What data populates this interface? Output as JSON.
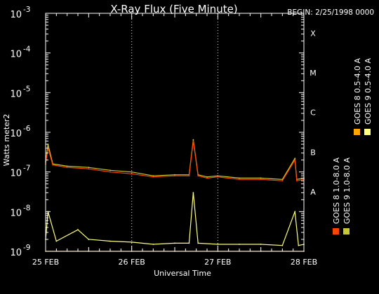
{
  "chart_data": {
    "type": "line",
    "title": "X-Ray Flux (Five Minute)",
    "begin_label": "BEGIN: 2/25/1998 0000",
    "xlabel": "Universal Time",
    "ylabel": "Watts meter2",
    "y_scale": "log",
    "ylim": [
      1e-09,
      0.001
    ],
    "xlim": [
      "1998-02-25",
      "1998-02-28"
    ],
    "grid": true,
    "y_tick_labels": [
      {
        "base": "10",
        "exp": "-9",
        "value": 1e-09
      },
      {
        "base": "10",
        "exp": "-8",
        "value": 1e-08
      },
      {
        "base": "10",
        "exp": "-7",
        "value": 1e-07
      },
      {
        "base": "10",
        "exp": "-6",
        "value": 1e-06
      },
      {
        "base": "10",
        "exp": "-5",
        "value": 1e-05
      },
      {
        "base": "10",
        "exp": "-4",
        "value": 0.0001
      },
      {
        "base": "10",
        "exp": "-3",
        "value": 0.001
      }
    ],
    "x_tick_labels": [
      {
        "label": "25 FEB",
        "value": "1998-02-25"
      },
      {
        "label": "26 FEB",
        "value": "1998-02-26"
      },
      {
        "label": "27 FEB",
        "value": "1998-02-27"
      },
      {
        "label": "28 FEB",
        "value": "1998-02-28"
      }
    ],
    "flare_classes": [
      {
        "label": "A",
        "value": 1e-08
      },
      {
        "label": "B",
        "value": 1e-07
      },
      {
        "label": "C",
        "value": 1e-06
      },
      {
        "label": "M",
        "value": 1e-05
      },
      {
        "label": "X",
        "value": 0.0001
      }
    ],
    "series": [
      {
        "name": "GOES 8 1.0-8.0 A",
        "color": "#ff4400",
        "x": [
          "1998-02-25 00:00",
          "1998-02-25 00:40",
          "1998-02-25 02:00",
          "1998-02-25 06:00",
          "1998-02-25 12:00",
          "1998-02-25 18:00",
          "1998-02-26 00:00",
          "1998-02-26 06:00",
          "1998-02-26 12:00",
          "1998-02-26 16:00",
          "1998-02-26 17:10",
          "1998-02-26 18:30",
          "1998-02-26 21:00",
          "1998-02-27 00:00",
          "1998-02-27 06:00",
          "1998-02-27 12:00",
          "1998-02-27 18:00",
          "1998-02-27 21:30",
          "1998-02-27 22:00",
          "1998-02-28 00:00"
        ],
        "y": [
          1.6e-07,
          4e-07,
          1.5e-07,
          1.3e-07,
          1.2e-07,
          1e-07,
          9e-08,
          7.5e-08,
          8e-08,
          8e-08,
          6e-07,
          8e-08,
          7e-08,
          7.5e-08,
          6.5e-08,
          6.5e-08,
          6e-08,
          2e-07,
          6e-08,
          6.5e-08
        ]
      },
      {
        "name": "GOES 8 0.5-4.0 A",
        "color": "#ffa500",
        "x": [
          "1998-02-25 00:00",
          "1998-02-25 12:00",
          "1998-02-26 00:00",
          "1998-02-26 12:00",
          "1998-02-27 00:00",
          "1998-02-27 12:00",
          "1998-02-28 00:00"
        ],
        "y": [
          1e-09,
          1e-09,
          1e-09,
          1e-09,
          1e-09,
          1e-09,
          1e-09
        ]
      },
      {
        "name": "GOES 9 1.0-8.0 A",
        "color": "#c8c830",
        "x": [
          "1998-02-25 00:00",
          "1998-02-25 00:40",
          "1998-02-25 02:00",
          "1998-02-25 06:00",
          "1998-02-25 12:00",
          "1998-02-25 18:00",
          "1998-02-26 00:00",
          "1998-02-26 06:00",
          "1998-02-26 12:00",
          "1998-02-26 16:00",
          "1998-02-26 17:10",
          "1998-02-26 18:30",
          "1998-02-26 21:00",
          "1998-02-27 00:00",
          "1998-02-27 06:00",
          "1998-02-27 12:00",
          "1998-02-27 18:00",
          "1998-02-27 21:30",
          "1998-02-27 22:00",
          "1998-02-28 00:00"
        ],
        "y": [
          1.8e-07,
          5e-07,
          1.6e-07,
          1.4e-07,
          1.3e-07,
          1.1e-07,
          1e-07,
          8e-08,
          8.5e-08,
          8.5e-08,
          6.5e-07,
          8.5e-08,
          7.5e-08,
          8e-08,
          7e-08,
          7e-08,
          6.5e-08,
          2.2e-07,
          6.5e-08,
          7e-08
        ]
      },
      {
        "name": "GOES 9 0.5-4.0 A",
        "color": "#ffff80",
        "x": [
          "1998-02-25 00:00",
          "1998-02-25 00:40",
          "1998-02-25 03:00",
          "1998-02-25 09:00",
          "1998-02-25 12:00",
          "1998-02-25 18:00",
          "1998-02-26 00:00",
          "1998-02-26 06:00",
          "1998-02-26 12:00",
          "1998-02-26 16:00",
          "1998-02-26 17:10",
          "1998-02-26 18:30",
          "1998-02-27 00:00",
          "1998-02-27 06:00",
          "1998-02-27 12:00",
          "1998-02-27 18:00",
          "1998-02-27 21:30",
          "1998-02-27 22:30",
          "1998-02-28 00:00"
        ],
        "y": [
          2e-09,
          1e-08,
          1.8e-09,
          3.5e-09,
          2e-09,
          1.8e-09,
          1.7e-09,
          1.5e-09,
          1.6e-09,
          1.6e-09,
          3e-08,
          1.6e-09,
          1.5e-09,
          1.5e-09,
          1.5e-09,
          1.4e-09,
          1e-08,
          1.4e-09,
          1.5e-09
        ]
      }
    ],
    "legend": {
      "placement": "right-vertical",
      "entries": [
        {
          "label": "GOES 8 1.0-8.0 A",
          "color": "#ff4400"
        },
        {
          "label": "GOES 8 0.5-4.0 A",
          "color": "#ffa500"
        },
        {
          "label": "GOES 9 1.0-8.0 A",
          "color": "#c8c830"
        },
        {
          "label": "GOES 9 0.5-4.0 A",
          "color": "#ffff80"
        }
      ]
    }
  }
}
